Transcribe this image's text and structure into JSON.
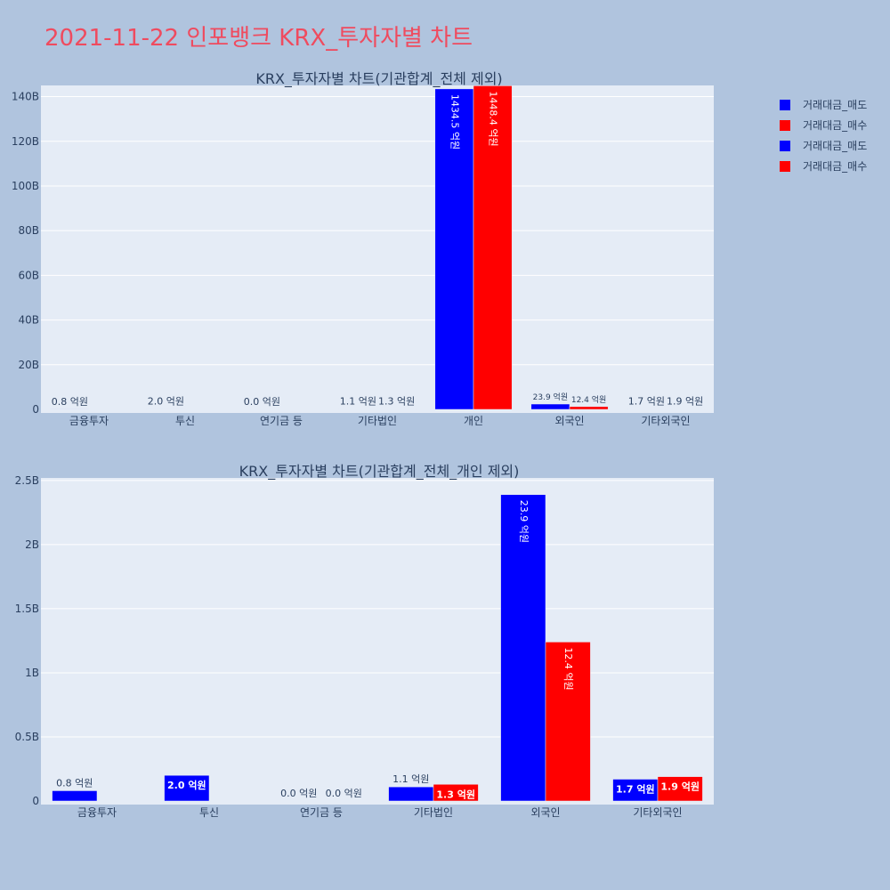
{
  "page": {
    "title": "2021-11-22 인포뱅크 KRX_투자자별 차트"
  },
  "legend": [
    {
      "label": "거래대금_매도",
      "color": "#0000ff"
    },
    {
      "label": "거래대금_매수",
      "color": "#ff0000"
    },
    {
      "label": "거래대금_매도",
      "color": "#0000ff"
    },
    {
      "label": "거래대금_매수",
      "color": "#ff0000"
    }
  ],
  "chart_data": [
    {
      "type": "bar",
      "title": "KRX_투자자별 차트(기관합계_전체 제외)",
      "categories": [
        "금융투자",
        "투신",
        "연기금 등",
        "기타법인",
        "개인",
        "외국인",
        "기타외국인"
      ],
      "series": [
        {
          "name": "거래대금_매도",
          "color": "#0000ff",
          "values": [
            80000000,
            200000000,
            0,
            110000000,
            143450000000,
            2390000000,
            170000000
          ],
          "labels": [
            "0.8 억원",
            "2.0 억원",
            "0.0 억원",
            "1.1 억원",
            "1434.5 억원",
            "23.9 억원",
            "1.7 억원"
          ]
        },
        {
          "name": "거래대금_매수",
          "color": "#ff0000",
          "values": [
            0,
            0,
            0,
            130000000,
            144840000000,
            1240000000,
            190000000
          ],
          "labels": [
            "",
            "",
            "",
            "1.3 억원",
            "1448.4 억원",
            "12.4 억원",
            "1.9 억원"
          ]
        }
      ],
      "ylim": [
        0,
        145000000000
      ],
      "yticks": [
        0,
        20000000000,
        40000000000,
        60000000000,
        80000000000,
        100000000000,
        120000000000,
        140000000000
      ],
      "ytick_labels": [
        "0",
        "20B",
        "40B",
        "60B",
        "80B",
        "100B",
        "120B",
        "140B"
      ],
      "grid": true
    },
    {
      "type": "bar",
      "title": "KRX_투자자별 차트(기관합계_전체_개인 제외)",
      "categories": [
        "금융투자",
        "투신",
        "연기금 등",
        "기타법인",
        "외국인",
        "기타외국인"
      ],
      "series": [
        {
          "name": "거래대금_매도",
          "color": "#0000ff",
          "values": [
            80000000,
            200000000,
            0,
            110000000,
            2390000000,
            170000000
          ],
          "labels": [
            "0.8 억원",
            "2.0 억원",
            "0.0 억원",
            "1.1 억원",
            "23.9 억원",
            "1.7 억원"
          ]
        },
        {
          "name": "거래대금_매수",
          "color": "#ff0000",
          "values": [
            0,
            0,
            0,
            130000000,
            1240000000,
            190000000
          ],
          "labels": [
            "",
            "",
            "0.0 억원",
            "1.3 억원",
            "12.4 억원",
            "1.9 억원"
          ]
        }
      ],
      "ylim": [
        0,
        2520000000
      ],
      "yticks": [
        0,
        500000000,
        1000000000,
        1500000000,
        2000000000,
        2500000000
      ],
      "ytick_labels": [
        "0",
        "0.5B",
        "1B",
        "1.5B",
        "2B",
        "2.5B"
      ],
      "grid": true
    }
  ]
}
